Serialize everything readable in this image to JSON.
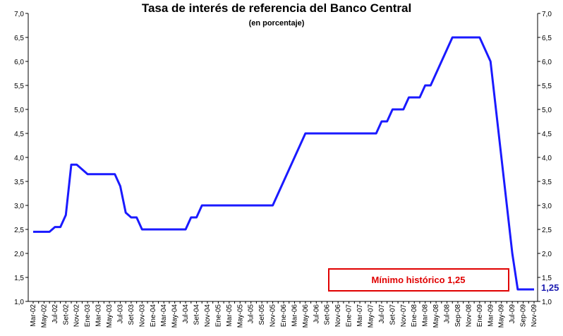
{
  "chart_data": {
    "type": "line",
    "title": "Tasa de interés de referencia del Banco Central",
    "subtitle": "(en porcentaje)",
    "categories": [
      "Mar-02",
      null,
      "May-02",
      null,
      "Jul-02",
      null,
      "Set-02",
      null,
      "Nov-02",
      null,
      "Ene-03",
      null,
      "Mar-03",
      null,
      "May-03",
      null,
      "Jul-03",
      null,
      "Set-03",
      null,
      "Nov-03",
      null,
      "Ene-04",
      null,
      "Mar-04",
      null,
      "May-04",
      null,
      "Jul-04",
      null,
      "Set-04",
      null,
      "Nov-04",
      null,
      "Ene-05",
      null,
      "Mar-05",
      null,
      "May-05",
      null,
      "Jul-05",
      null,
      "Set-05",
      null,
      "Nov-05",
      null,
      "Ene-06",
      null,
      "Mar-06",
      null,
      "May-06",
      null,
      "Jul-06",
      null,
      "Set-06",
      null,
      "Nov-06",
      null,
      "Ene-07",
      null,
      "Mar-07",
      null,
      "May-07",
      null,
      "Jul-07",
      null,
      "Set-07",
      null,
      "Nov-07",
      null,
      "Ene-08",
      null,
      "Mar-08",
      null,
      "May-08",
      null,
      "Jul-08",
      null,
      "Sep-08",
      null,
      "Nov-08",
      null,
      "Ene-09",
      null,
      "Mar-09",
      null,
      "May-09",
      null,
      "Jul-09",
      null,
      "Sep-09",
      null,
      "Nov-09"
    ],
    "series": [
      {
        "color": "#1a1aff",
        "values": [
          2.45,
          2.45,
          2.45,
          2.45,
          2.55,
          2.55,
          2.8,
          3.85,
          3.85,
          3.75,
          3.65,
          3.65,
          3.65,
          3.65,
          3.65,
          3.65,
          3.4,
          2.85,
          2.75,
          2.75,
          2.5,
          2.5,
          2.5,
          2.5,
          2.5,
          2.5,
          2.5,
          2.5,
          2.5,
          2.75,
          2.75,
          3.0,
          3.0,
          3.0,
          3.0,
          3.0,
          3.0,
          3.0,
          3.0,
          3.0,
          3.0,
          3.0,
          3.0,
          3.0,
          3.0,
          3.25,
          3.5,
          3.75,
          4.0,
          4.25,
          4.5,
          4.5,
          4.5,
          4.5,
          4.5,
          4.5,
          4.5,
          4.5,
          4.5,
          4.5,
          4.5,
          4.5,
          4.5,
          4.5,
          4.75,
          4.75,
          5.0,
          5.0,
          5.0,
          5.25,
          5.25,
          5.25,
          5.5,
          5.5,
          5.75,
          6.0,
          6.25,
          6.5,
          6.5,
          6.5,
          6.5,
          6.5,
          6.5,
          6.25,
          6.0,
          5.0,
          4.0,
          3.0,
          2.0,
          1.25,
          1.25,
          1.25,
          1.25
        ]
      }
    ],
    "ylim": [
      1.0,
      7.0
    ],
    "yticks": [
      {
        "value": 1.0,
        "label": "1,0"
      },
      {
        "value": 1.5,
        "label": "1,5"
      },
      {
        "value": 2.0,
        "label": "2,0"
      },
      {
        "value": 2.5,
        "label": "2,5"
      },
      {
        "value": 3.0,
        "label": "3,0"
      },
      {
        "value": 3.5,
        "label": "3,5"
      },
      {
        "value": 4.0,
        "label": "4,0"
      },
      {
        "value": 4.5,
        "label": "4,5"
      },
      {
        "value": 5.0,
        "label": "5,0"
      },
      {
        "value": 5.5,
        "label": "5,5"
      },
      {
        "value": 6.0,
        "label": "6,0"
      },
      {
        "value": 6.5,
        "label": "6,5"
      },
      {
        "value": 7.0,
        "label": "7,0"
      }
    ],
    "y2lim": [
      1.0,
      7.0
    ],
    "y2ticks": [
      {
        "value": 1.0,
        "label": "1,0"
      },
      {
        "value": 1.5,
        "label": "1,5"
      },
      {
        "value": 2.0,
        "label": "2,0"
      },
      {
        "value": 2.5,
        "label": "2,5"
      },
      {
        "value": 3.0,
        "label": "3,0"
      },
      {
        "value": 3.5,
        "label": "3,5"
      },
      {
        "value": 4.0,
        "label": "4,0"
      },
      {
        "value": 4.5,
        "label": "4,5"
      },
      {
        "value": 5.0,
        "label": "5,0"
      },
      {
        "value": 5.5,
        "label": "5,5"
      },
      {
        "value": 6.0,
        "label": "6,0"
      },
      {
        "value": 6.5,
        "label": "6,5"
      },
      {
        "value": 7.0,
        "label": "7,0"
      }
    ],
    "annotations": [
      "Mínimo histórico 1,25",
      "1,25"
    ]
  }
}
